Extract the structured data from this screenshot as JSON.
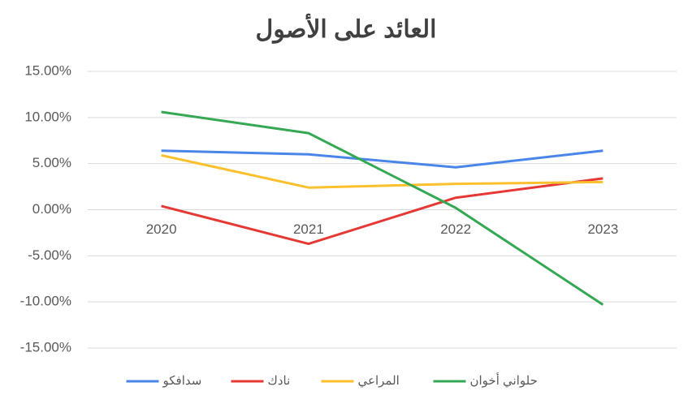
{
  "chart_data": {
    "type": "line",
    "title": "العائد على الأصول",
    "categories": [
      "2020",
      "2021",
      "2022",
      "2023"
    ],
    "series": [
      {
        "name": "سدافكو",
        "color": "#4a86e8",
        "values": [
          6.4,
          6.0,
          4.6,
          6.4
        ]
      },
      {
        "name": "نادك",
        "color": "#e53935",
        "values": [
          0.4,
          -3.7,
          1.3,
          3.4
        ]
      },
      {
        "name": "المراعي",
        "color": "#fbc02d",
        "values": [
          5.9,
          2.4,
          2.8,
          3.0
        ]
      },
      {
        "name": "حلواني أخوان",
        "color": "#34a853",
        "values": [
          10.6,
          8.3,
          0.2,
          -10.3
        ]
      }
    ],
    "ylim": [
      -15,
      15
    ],
    "yticks": [
      {
        "value": -15,
        "label": "-15.00%"
      },
      {
        "value": -10,
        "label": "-10.00%"
      },
      {
        "value": -5,
        "label": "-5.00%"
      },
      {
        "value": 0,
        "label": "0.00%"
      },
      {
        "value": 5,
        "label": "5.00%"
      },
      {
        "value": 10,
        "label": "10.00%"
      },
      {
        "value": 15,
        "label": "15.00%"
      }
    ],
    "grid": true,
    "legend": "bottom"
  }
}
